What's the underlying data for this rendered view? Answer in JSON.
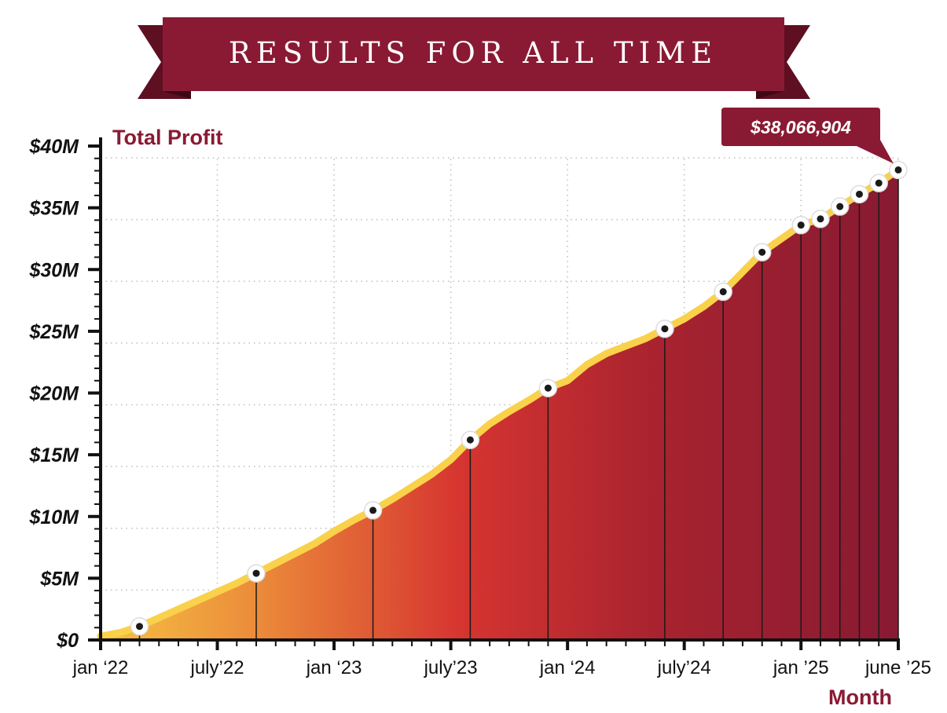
{
  "colors": {
    "banner": "#8a1a33",
    "banner_dark": "#5e0f22",
    "line": "#f9d14a",
    "gradient_start": "#f6c244",
    "gradient_mid1": "#eb8a3a",
    "gradient_mid2": "#d63530",
    "gradient_mid3": "#a8232f",
    "gradient_end": "#871a32",
    "axis_title": "#8a1a33"
  },
  "chart_data": {
    "type": "area",
    "title": "RESULTS FOR ALL TIME",
    "ylabel": "Total Profit",
    "xlabel": "Month",
    "x_unit": "months since jan '22",
    "x_range": [
      0,
      41
    ],
    "ylim": [
      0,
      40000000
    ],
    "y_ticks": [
      {
        "value": 0,
        "label": "$0"
      },
      {
        "value": 5000000,
        "label": "$5M"
      },
      {
        "value": 10000000,
        "label": "$10M"
      },
      {
        "value": 15000000,
        "label": "$15M"
      },
      {
        "value": 20000000,
        "label": "$20M"
      },
      {
        "value": 25000000,
        "label": "$25M"
      },
      {
        "value": 30000000,
        "label": "$30M"
      },
      {
        "value": 35000000,
        "label": "$35M"
      },
      {
        "value": 40000000,
        "label": "$40M"
      }
    ],
    "x_ticks": [
      {
        "value": 0,
        "label": "jan ‘22"
      },
      {
        "value": 6,
        "label": "july’22"
      },
      {
        "value": 12,
        "label": "jan ‘23"
      },
      {
        "value": 18,
        "label": "july’23"
      },
      {
        "value": 24,
        "label": "jan ‘24"
      },
      {
        "value": 30,
        "label": "july’24"
      },
      {
        "value": 36,
        "label": "jan ’25"
      },
      {
        "value": 41,
        "label": "june ’25"
      }
    ],
    "grid": true,
    "series": [
      {
        "name": "Total Profit",
        "x": [
          0,
          1,
          2,
          3,
          4,
          5,
          6,
          7,
          8,
          9,
          10,
          11,
          12,
          13,
          14,
          15,
          16,
          17,
          18,
          19,
          20,
          21,
          22,
          23,
          24,
          25,
          26,
          27,
          28,
          29,
          30,
          31,
          32,
          33,
          34,
          35,
          36,
          37,
          38,
          39,
          40,
          41
        ],
        "values": [
          300000,
          600000,
          1100000,
          1800000,
          2500000,
          3200000,
          3900000,
          4600000,
          5400000,
          6200000,
          7000000,
          7800000,
          8800000,
          9700000,
          10500000,
          11400000,
          12400000,
          13400000,
          14600000,
          16200000,
          17500000,
          18500000,
          19400000,
          20400000,
          21000000,
          22300000,
          23200000,
          23800000,
          24400000,
          25200000,
          26000000,
          27000000,
          28200000,
          29800000,
          31400000,
          32500000,
          33600000,
          34100000,
          35100000,
          36100000,
          37000000,
          38066904
        ]
      }
    ],
    "highlight_points": [
      {
        "x": 2,
        "y": 1100000
      },
      {
        "x": 8,
        "y": 5400000
      },
      {
        "x": 14,
        "y": 10500000
      },
      {
        "x": 19,
        "y": 16200000
      },
      {
        "x": 23,
        "y": 20400000
      },
      {
        "x": 29,
        "y": 25200000
      },
      {
        "x": 32,
        "y": 28200000
      },
      {
        "x": 34,
        "y": 31400000
      },
      {
        "x": 36,
        "y": 33600000
      },
      {
        "x": 37,
        "y": 34100000
      },
      {
        "x": 38,
        "y": 35100000
      },
      {
        "x": 39,
        "y": 36100000
      },
      {
        "x": 40,
        "y": 37000000
      },
      {
        "x": 41,
        "y": 38066904
      }
    ],
    "annotation": {
      "x": 41,
      "y": 38066904,
      "label": "$38,066,904"
    }
  }
}
